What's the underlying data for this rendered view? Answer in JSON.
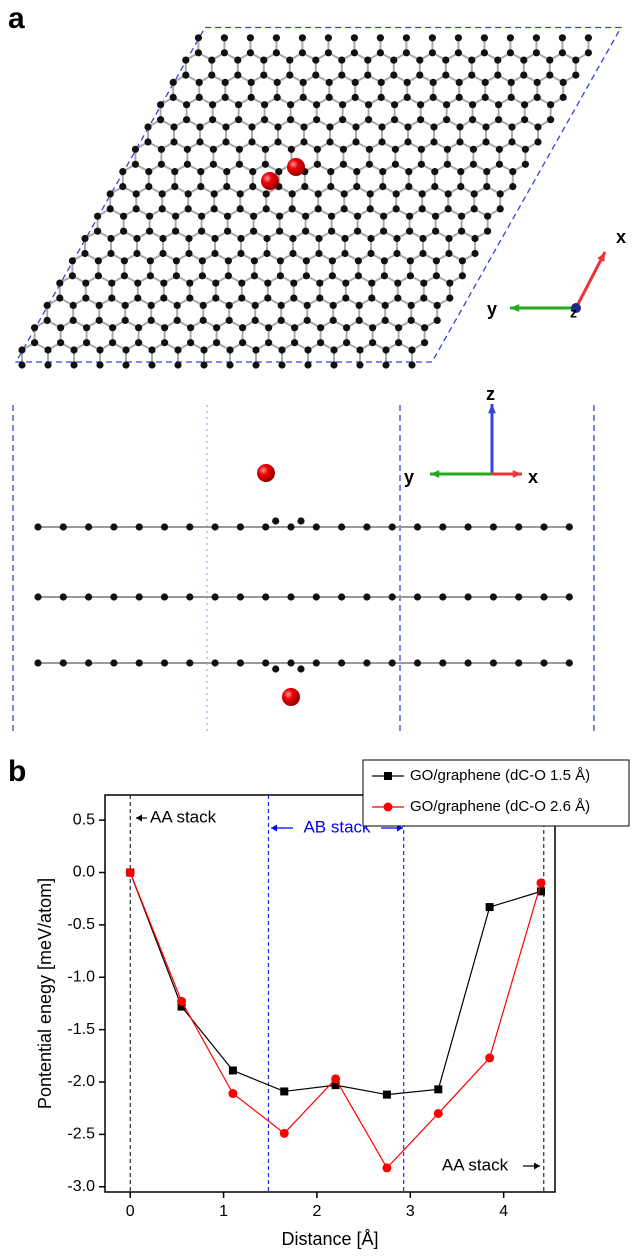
{
  "panels": {
    "a": {
      "label": "a",
      "top_view_axes": [
        "x",
        "y",
        "z"
      ],
      "side_view_axes": [
        "z",
        "y",
        "x"
      ]
    },
    "b": {
      "label": "b"
    }
  },
  "chart_data": {
    "type": "line",
    "x_label": "Distance [Å]",
    "y_label": "Pontential enegy [meV/atom]",
    "x": [
      0,
      0.55,
      1.1,
      1.65,
      2.2,
      2.75,
      3.3,
      3.85,
      4.4
    ],
    "series": [
      {
        "name": "GO/graphene (dC-O 1.5 Å)",
        "color": "#000000",
        "marker": "square",
        "values": [
          0,
          -1.28,
          -1.89,
          -2.09,
          -2.03,
          -2.12,
          -2.07,
          -0.33,
          -0.18
        ]
      },
      {
        "name": "GO/graphene (dC-O 2.6 Å)",
        "color": "#ff0000",
        "marker": "circle",
        "values": [
          0,
          -1.23,
          -2.11,
          -2.49,
          -1.97,
          -2.82,
          -2.3,
          -1.77,
          -0.1
        ]
      }
    ],
    "xlim": [
      -0.27,
      4.55
    ],
    "ylim": [
      -3.05,
      0.74
    ],
    "xticks": [
      0,
      1,
      2,
      3,
      4
    ],
    "yticks": [
      0.5,
      {
        "value": 0,
        "label": "0.0"
      },
      -0.5,
      {
        "value": -1,
        "label": "-1.0"
      },
      -1.5,
      {
        "value": -2,
        "label": "-2.0"
      },
      -2.5,
      {
        "value": -3,
        "label": "-3.0"
      }
    ],
    "reference_lines": [
      {
        "x": 0,
        "color": "#000000"
      },
      {
        "x": 1.48,
        "color": "#0000ff"
      },
      {
        "x": 2.93,
        "color": "#0000ff"
      },
      {
        "x": 4.43,
        "color": "#000000"
      }
    ],
    "annotations": [
      {
        "text": "AA stack",
        "color": "#000000"
      },
      {
        "text": "AB stack",
        "color": "#0000ff"
      },
      {
        "text": "AA stack",
        "color": "#000000"
      }
    ],
    "legend": "upper right"
  }
}
